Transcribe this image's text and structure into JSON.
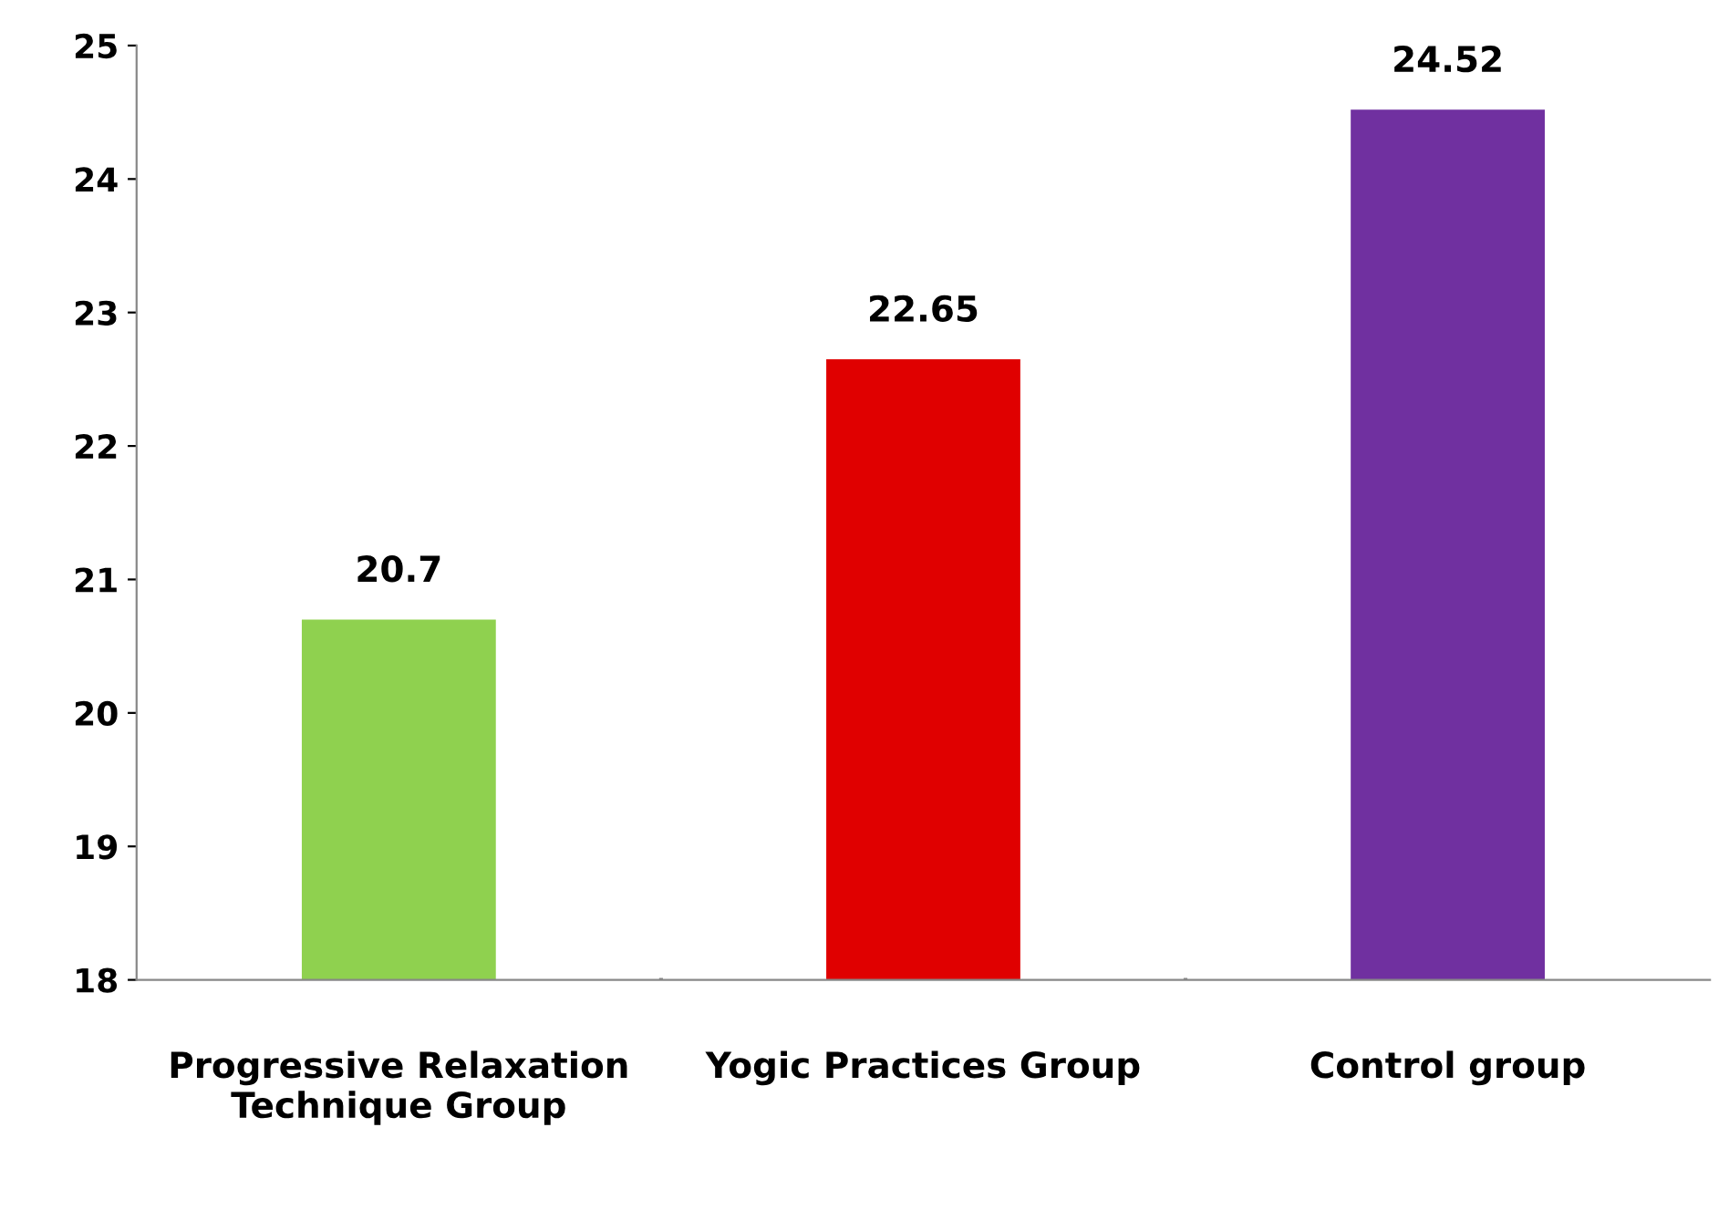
{
  "chart_data": {
    "type": "bar",
    "categories": [
      "Progressive Relaxation Technique Group",
      "Yogic Practices Group",
      "Control group"
    ],
    "values": [
      20.7,
      22.65,
      24.52
    ],
    "colors": [
      "#8fd14f",
      "#e00000",
      "#7030a0"
    ],
    "ylim": [
      18,
      25
    ],
    "yticks": [
      18,
      19,
      20,
      21,
      22,
      23,
      24,
      25
    ],
    "data_labels": true,
    "grid": false,
    "legend": false
  }
}
